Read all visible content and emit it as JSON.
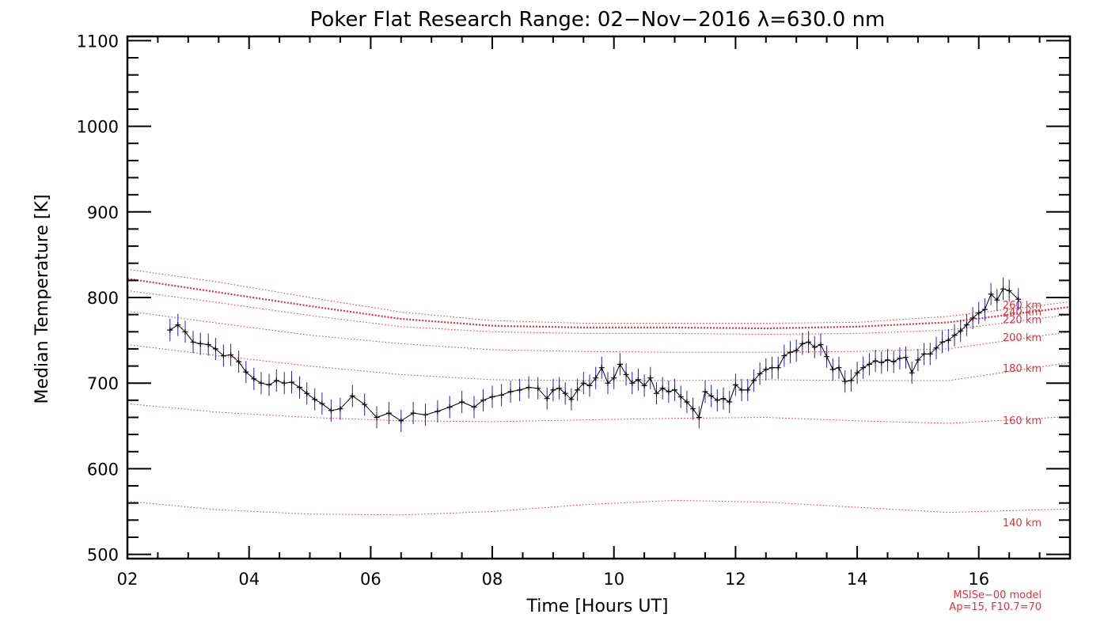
{
  "chart_data": {
    "type": "line",
    "title": "Poker Flat Research Range: 02−Nov−2016 λ=630.0 nm",
    "xlabel": "Time [Hours UT]",
    "ylabel": "Median Temperature [K]",
    "xlim": [
      2.0,
      17.5
    ],
    "ylim": [
      495,
      1105
    ],
    "xticks": [
      2,
      4,
      6,
      8,
      10,
      12,
      14,
      16
    ],
    "xtick_labels": [
      "02",
      "04",
      "06",
      "08",
      "10",
      "12",
      "14",
      "16"
    ],
    "yticks": [
      500,
      600,
      700,
      800,
      900,
      1000,
      1100
    ],
    "ytick_labels": [
      "500",
      "600",
      "700",
      "800",
      "900",
      "1000",
      "1100"
    ],
    "grid": false,
    "colors": {
      "data_line": "#000000",
      "error_bars": "#2020d0",
      "model": "#e8303a"
    },
    "series": {
      "x": [
        2.7,
        2.83,
        2.95,
        3.08,
        3.2,
        3.33,
        3.45,
        3.58,
        3.7,
        3.83,
        3.95,
        4.08,
        4.2,
        4.33,
        4.45,
        4.58,
        4.7,
        4.83,
        4.95,
        5.08,
        5.2,
        5.35,
        5.5,
        5.7,
        5.9,
        6.1,
        6.3,
        6.5,
        6.7,
        6.9,
        7.1,
        7.3,
        7.5,
        7.7,
        7.85,
        8.0,
        8.15,
        8.3,
        8.45,
        8.6,
        8.75,
        8.9,
        9.0,
        9.1,
        9.2,
        9.3,
        9.4,
        9.5,
        9.6,
        9.7,
        9.8,
        9.9,
        10.0,
        10.1,
        10.2,
        10.3,
        10.4,
        10.5,
        10.6,
        10.7,
        10.8,
        10.9,
        11.0,
        11.1,
        11.2,
        11.3,
        11.4,
        11.5,
        11.6,
        11.7,
        11.8,
        11.9,
        12.0,
        12.1,
        12.2,
        12.3,
        12.4,
        12.5,
        12.6,
        12.7,
        12.8,
        12.9,
        13.0,
        13.1,
        13.2,
        13.3,
        13.4,
        13.5,
        13.6,
        13.7,
        13.8,
        13.9,
        14.0,
        14.1,
        14.2,
        14.3,
        14.4,
        14.5,
        14.6,
        14.7,
        14.8,
        14.9,
        15.0,
        15.1,
        15.2,
        15.3,
        15.4,
        15.5,
        15.6,
        15.7,
        15.8,
        15.9,
        16.0,
        16.1,
        16.2,
        16.3,
        16.4,
        16.5,
        16.65
      ],
      "y": [
        762,
        768,
        760,
        748,
        746,
        745,
        740,
        732,
        733,
        725,
        713,
        705,
        700,
        698,
        703,
        700,
        701,
        695,
        688,
        681,
        676,
        668,
        670,
        685,
        675,
        660,
        665,
        656,
        665,
        663,
        667,
        672,
        678,
        672,
        680,
        684,
        686,
        690,
        692,
        695,
        694,
        682,
        692,
        694,
        688,
        681,
        692,
        700,
        697,
        706,
        718,
        700,
        706,
        722,
        710,
        700,
        704,
        697,
        706,
        688,
        694,
        690,
        692,
        684,
        678,
        670,
        660,
        690,
        685,
        680,
        682,
        678,
        698,
        692,
        692,
        703,
        711,
        716,
        718,
        718,
        732,
        736,
        738,
        746,
        748,
        742,
        745,
        731,
        716,
        718,
        702,
        703,
        712,
        718,
        722,
        726,
        724,
        727,
        725,
        729,
        730,
        712,
        727,
        734,
        734,
        741,
        748,
        750,
        756,
        761,
        768,
        776,
        782,
        786,
        804,
        797,
        810,
        808,
        798
      ],
      "error": 13
    },
    "model_curves": [
      {
        "label": "140 km",
        "label_y": 533,
        "x": [
          2.0,
          3.5,
          5.0,
          6.5,
          8.0,
          9.5,
          11.0,
          12.5,
          14.0,
          15.5,
          17.5
        ],
        "y": [
          562,
          552,
          547,
          546,
          550,
          558,
          563,
          561,
          555,
          549,
          553
        ]
      },
      {
        "label": "160 km",
        "label_y": 652,
        "x": [
          2.0,
          3.5,
          5.0,
          6.5,
          8.0,
          9.5,
          11.0,
          12.5,
          14.0,
          15.5,
          17.5
        ],
        "y": [
          676,
          666,
          660,
          656,
          655,
          657,
          659,
          660,
          656,
          653,
          661
        ]
      },
      {
        "label": "180 km",
        "label_y": 713,
        "x": [
          2.0,
          3.5,
          5.0,
          6.5,
          8.0,
          9.5,
          11.0,
          12.5,
          14.0,
          15.5,
          17.5
        ],
        "y": [
          745,
          732,
          720,
          710,
          704,
          703,
          703,
          704,
          703,
          703,
          724
        ]
      },
      {
        "label": "200 km",
        "label_y": 749,
        "x": [
          2.0,
          3.5,
          5.0,
          6.5,
          8.0,
          9.5,
          11.0,
          12.5,
          14.0,
          15.5,
          17.5
        ],
        "y": [
          784,
          770,
          756,
          746,
          739,
          737,
          736,
          736,
          737,
          740,
          760
        ]
      },
      {
        "label": "220 km",
        "label_y": 770,
        "x": [
          2.0,
          3.5,
          5.0,
          6.5,
          8.0,
          9.5,
          11.0,
          12.5,
          14.0,
          15.5,
          17.5
        ],
        "y": [
          808,
          794,
          779,
          766,
          760,
          758,
          758,
          757,
          758,
          762,
          780
        ]
      },
      {
        "label": "240 km",
        "label_y": 779,
        "x": [
          2.0,
          3.5,
          5.0,
          6.5,
          8.0,
          9.5,
          11.0,
          12.5,
          14.0,
          15.5,
          17.5
        ],
        "y": [
          822,
          806,
          790,
          775,
          767,
          765,
          765,
          764,
          766,
          771,
          789
        ]
      },
      {
        "label": "260 km",
        "label_y": 787,
        "x": [
          2.0,
          3.5,
          5.0,
          6.5,
          8.0,
          9.5,
          11.0,
          12.5,
          14.0,
          15.5,
          17.5
        ],
        "y": [
          833,
          818,
          800,
          783,
          773,
          770,
          770,
          770,
          771,
          778,
          795
        ]
      }
    ],
    "model_note": [
      "MSISe−00 model",
      "Ap=15, F10.7=70"
    ]
  }
}
